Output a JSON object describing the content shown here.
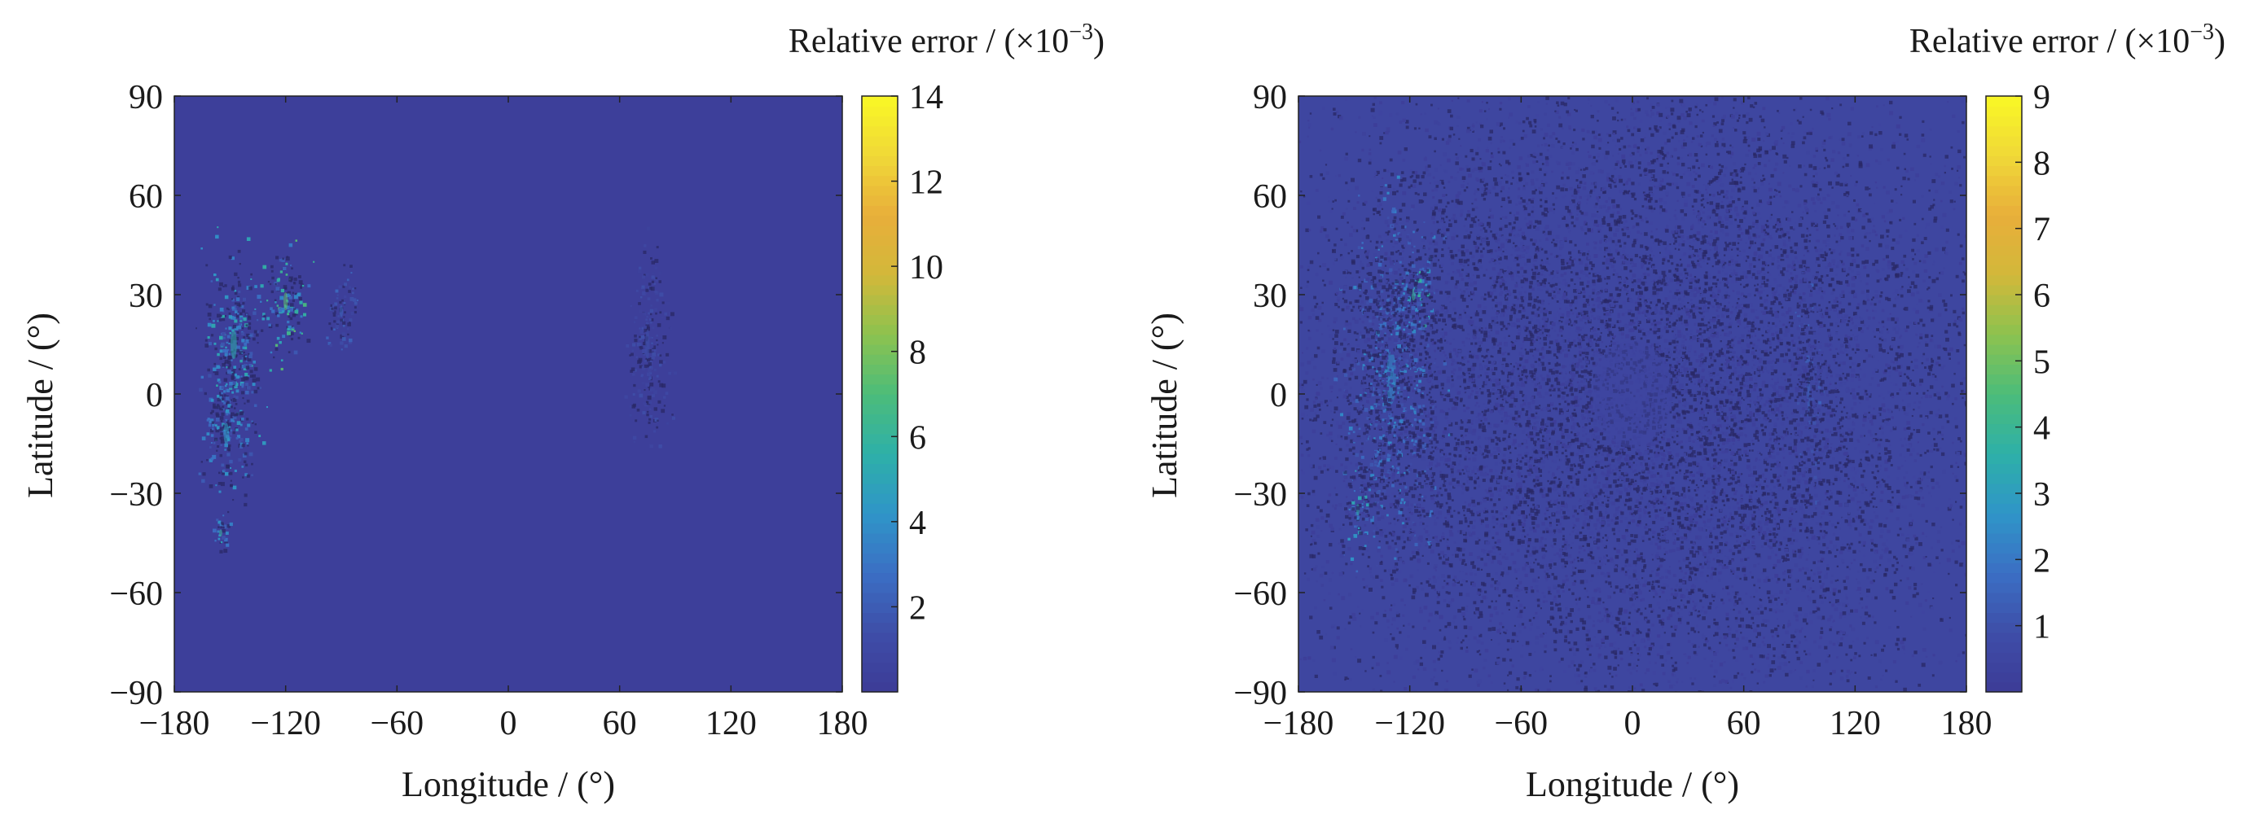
{
  "chart_data": [
    {
      "type": "heatmap",
      "xlabel": "Longitude / (°)",
      "ylabel": "Latitude / (°)",
      "xlim": [
        -180,
        180
      ],
      "ylim": [
        -90,
        90
      ],
      "xticks": [
        -180,
        -120,
        -60,
        0,
        60,
        120,
        180
      ],
      "xtick_labels": [
        "−180",
        "−120",
        "−60",
        "0",
        "60",
        "120",
        "180"
      ],
      "yticks": [
        90,
        60,
        30,
        0,
        -30,
        -60,
        -90
      ],
      "ytick_labels": [
        "90",
        "60",
        "30",
        "0",
        "−30",
        "−60",
        "−90"
      ],
      "colorbar": {
        "title": "Relative error / (×10",
        "title_exponent": "−3",
        "title_close": ")",
        "range": [
          0,
          14
        ],
        "ticks": [
          2,
          4,
          6,
          8,
          10,
          12,
          14
        ],
        "tick_labels": [
          "2",
          "4",
          "6",
          "8",
          "10",
          "12",
          "14"
        ]
      },
      "colormap": [
        "#3d3b96",
        "#3e4ea8",
        "#3b6fc4",
        "#2f95c8",
        "#2eb0a8",
        "#4cbc7a",
        "#8cc24f",
        "#d2b83a",
        "#e8ae3a",
        "#f0d838",
        "#f9f825"
      ],
      "background_value": 0.3,
      "clusters": [
        {
          "lon": -148,
          "lat": 15,
          "spread_lon": 14,
          "spread_lat": 25,
          "intensity": 5.5
        },
        {
          "lon": -152,
          "lat": -12,
          "spread_lon": 12,
          "spread_lat": 18,
          "intensity": 4.5
        },
        {
          "lon": -120,
          "lat": 28,
          "spread_lon": 10,
          "spread_lat": 15,
          "intensity": 7.5
        },
        {
          "lon": -155,
          "lat": -42,
          "spread_lon": 5,
          "spread_lat": 6,
          "intensity": 6.0
        },
        {
          "lon": -90,
          "lat": 25,
          "spread_lon": 8,
          "spread_lat": 10,
          "intensity": 2.5
        },
        {
          "lon": 75,
          "lat": 15,
          "spread_lon": 10,
          "spread_lat": 25,
          "intensity": 1.5
        }
      ]
    },
    {
      "type": "heatmap",
      "xlabel": "Longitude / (°)",
      "ylabel": "Latitude / (°)",
      "xlim": [
        -180,
        180
      ],
      "ylim": [
        -90,
        90
      ],
      "xticks": [
        -180,
        -120,
        -60,
        0,
        60,
        120,
        180
      ],
      "xtick_labels": [
        "−180",
        "−120",
        "−60",
        "0",
        "60",
        "120",
        "180"
      ],
      "yticks": [
        90,
        60,
        30,
        0,
        -30,
        -60,
        -90
      ],
      "ytick_labels": [
        "90",
        "60",
        "30",
        "0",
        "−30",
        "−60",
        "−90"
      ],
      "colorbar": {
        "title": "Relative error / (×10",
        "title_exponent": "−3",
        "title_close": ")",
        "range": [
          0,
          9
        ],
        "ticks": [
          1,
          2,
          3,
          4,
          5,
          6,
          7,
          8,
          9
        ],
        "tick_labels": [
          "1",
          "2",
          "3",
          "4",
          "5",
          "6",
          "7",
          "8",
          "9"
        ]
      },
      "colormap": [
        "#3d3b96",
        "#3e4ea8",
        "#3b6fc4",
        "#2f95c8",
        "#2eb0a8",
        "#4cbc7a",
        "#8cc24f",
        "#d2b83a",
        "#e8ae3a",
        "#f0d838",
        "#f9f825"
      ],
      "background_value": 0.5,
      "clusters": [
        {
          "lon": -130,
          "lat": 5,
          "spread_lon": 22,
          "spread_lat": 45,
          "intensity": 2.5
        },
        {
          "lon": -118,
          "lat": 30,
          "spread_lon": 9,
          "spread_lat": 10,
          "intensity": 4.0
        },
        {
          "lon": -148,
          "lat": -35,
          "spread_lon": 6,
          "spread_lat": 10,
          "intensity": 3.5
        },
        {
          "lon": 95,
          "lat": 0,
          "spread_lon": 6,
          "spread_lat": 30,
          "intensity": 1.5
        },
        {
          "lon": 0,
          "lat": 0,
          "spread_lon": 180,
          "spread_lat": 90,
          "intensity": 0.5
        }
      ]
    }
  ]
}
